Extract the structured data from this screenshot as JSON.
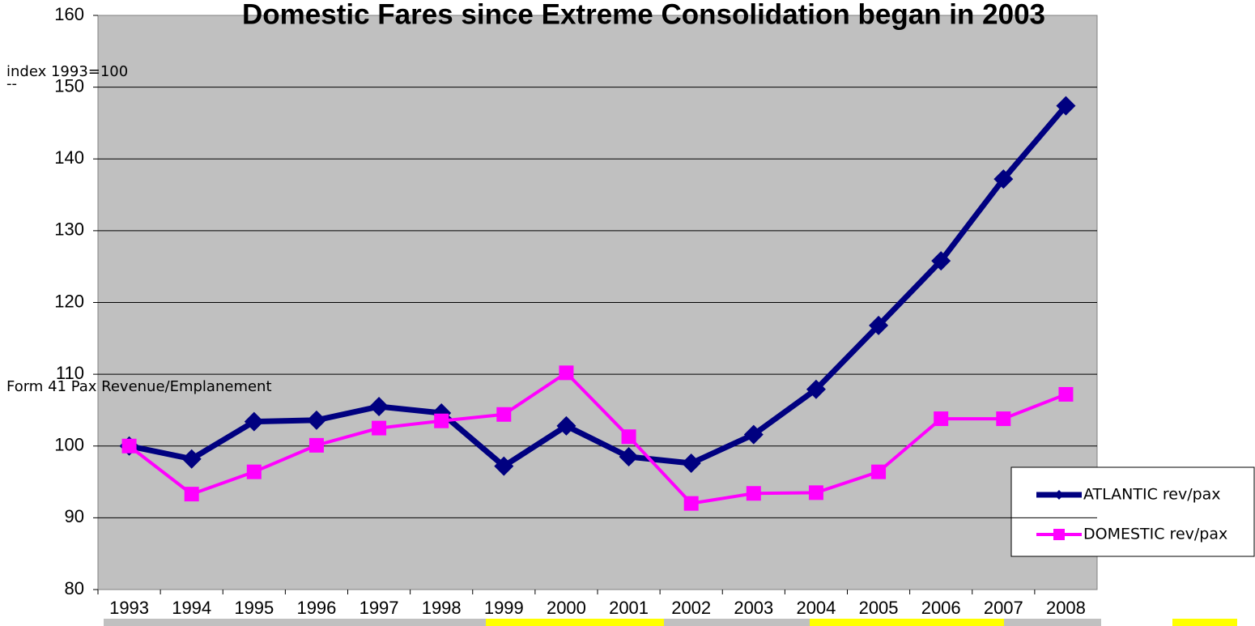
{
  "chart_data": {
    "type": "line",
    "title": "Domestic Fares since Extreme Consolidation began in 2003",
    "annotations": [
      "index 1993=100",
      "--",
      "Form 41 Pax Revenue/Emplanement"
    ],
    "categories": [
      "1993",
      "1994",
      "1995",
      "1996",
      "1997",
      "1998",
      "1999",
      "2000",
      "2001",
      "2002",
      "2003",
      "2004",
      "2005",
      "2006",
      "2007",
      "2008"
    ],
    "series": [
      {
        "name": "ATLANTIC rev/pax",
        "color": "#000080",
        "marker": "diamond",
        "values": [
          100,
          98.2,
          103.4,
          103.6,
          105.5,
          104.6,
          97.2,
          102.8,
          98.5,
          97.6,
          101.6,
          107.9,
          116.8,
          125.8,
          137.2,
          147.4
        ]
      },
      {
        "name": "DOMESTIC rev/pax",
        "color": "#ff00ff",
        "marker": "square",
        "values": [
          100,
          93.3,
          96.4,
          100.1,
          102.5,
          103.5,
          104.4,
          110.2,
          101.3,
          92,
          93.4,
          93.5,
          96.4,
          103.8,
          103.8,
          107.2
        ]
      }
    ],
    "ylim": [
      80,
      160
    ],
    "yticks": [
      80,
      90,
      100,
      110,
      120,
      130,
      140,
      150,
      160
    ],
    "grid": true
  }
}
